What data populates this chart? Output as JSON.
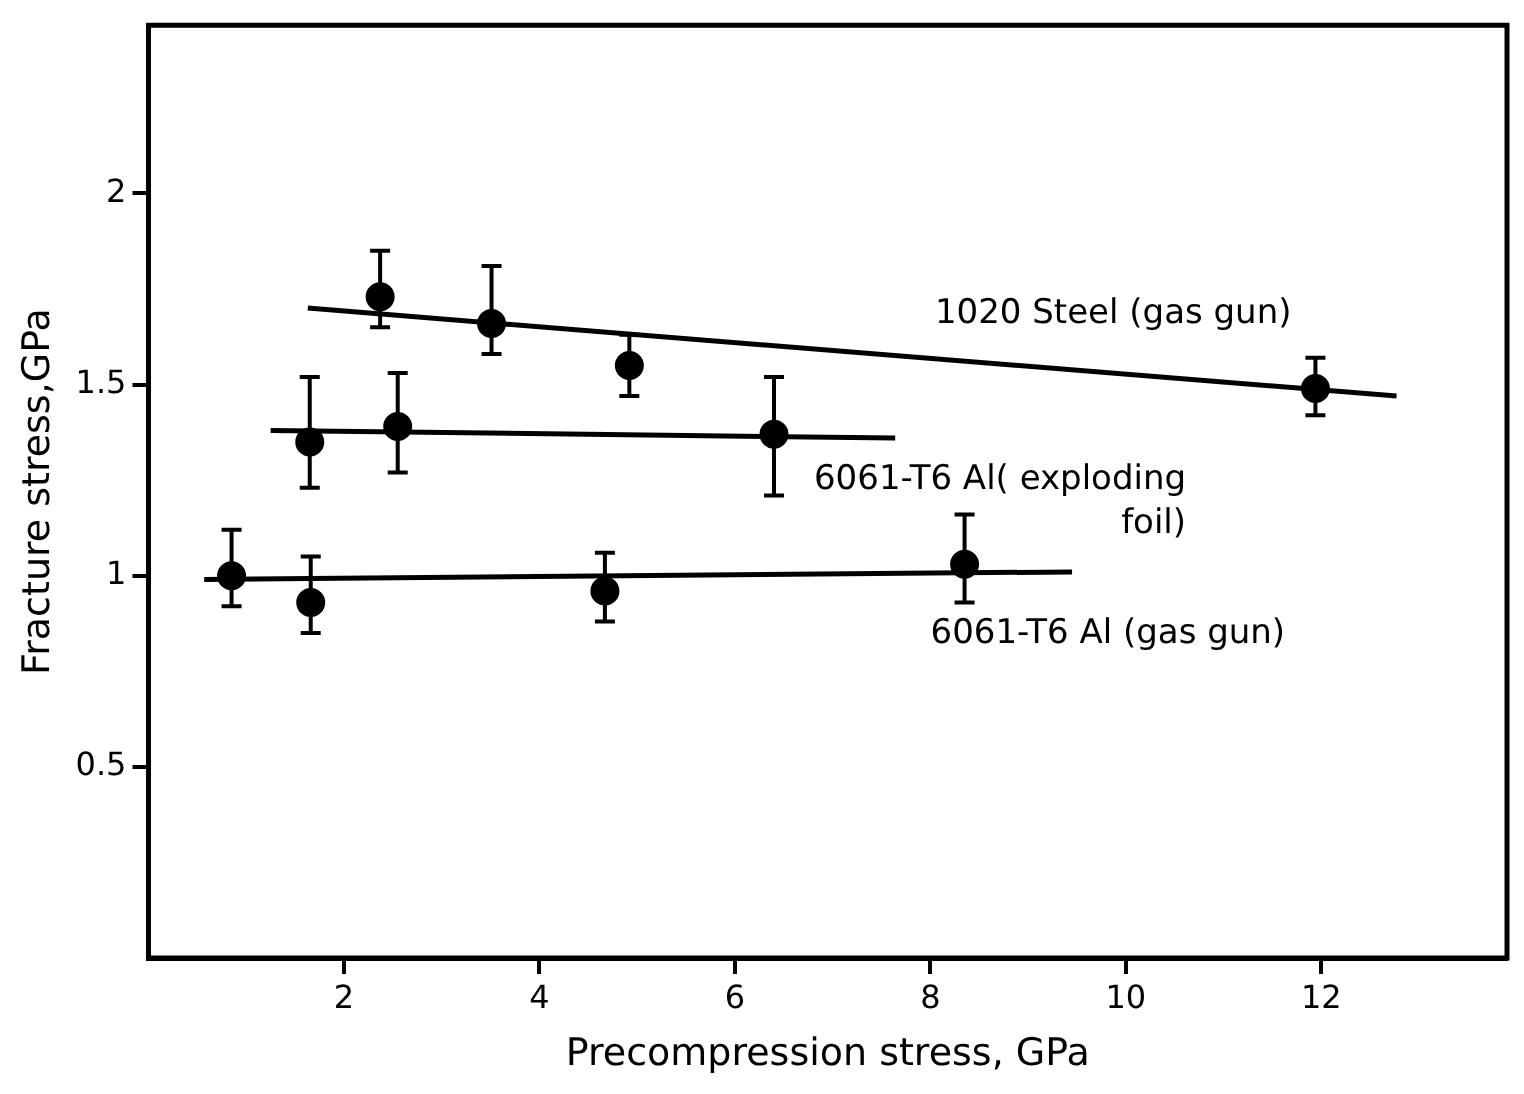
{
  "chart_data": {
    "type": "scatter",
    "xlabel": "Precompression stress, GPa",
    "ylabel": "Fracture stress,GPa",
    "xlim": [
      0,
      13.9
    ],
    "ylim": [
      0,
      2.44
    ],
    "xticks": [
      2,
      4,
      6,
      8,
      10,
      12
    ],
    "yticks": [
      0.5,
      1,
      1.5,
      2
    ],
    "grid": false,
    "legend": false,
    "marker": "circle",
    "series": [
      {
        "name": "1020 Steel (gas gun)",
        "color": "#000000",
        "x": [
          2.37,
          3.51,
          4.92,
          11.94
        ],
        "values": [
          1.73,
          1.66,
          1.55,
          1.49
        ],
        "errors": [
          [
            1.65,
            1.85
          ],
          [
            1.58,
            1.81
          ],
          [
            1.47,
            1.63
          ],
          [
            1.42,
            1.57
          ]
        ]
      },
      {
        "name": "6061-T6 Al( exploding\nfoil)",
        "color": "#000000",
        "x": [
          1.65,
          2.55,
          6.4
        ],
        "values": [
          1.35,
          1.39,
          1.37
        ],
        "errors": [
          [
            1.23,
            1.52
          ],
          [
            1.27,
            1.53
          ],
          [
            1.21,
            1.52
          ]
        ]
      },
      {
        "name": "6061-T6 Al (gas gun)",
        "color": "#000000",
        "x": [
          0.85,
          1.66,
          4.67,
          8.35
        ],
        "values": [
          1.0,
          0.93,
          0.96,
          1.03
        ],
        "errors": [
          [
            0.92,
            1.12
          ],
          [
            0.85,
            1.05
          ],
          [
            0.88,
            1.06
          ],
          [
            0.93,
            1.16
          ]
        ]
      },
      {
        "type": "line",
        "color": "#000000",
        "marker": "none",
        "line_style": "solid",
        "x": [
          1.63,
          12.77
        ],
        "values": [
          1.7,
          1.47
        ]
      },
      {
        "type": "line",
        "color": "#000000",
        "marker": "none",
        "line_style": "solid",
        "x": [
          1.25,
          7.64
        ],
        "values": [
          1.38,
          1.36
        ]
      },
      {
        "type": "line",
        "color": "#000000",
        "marker": "none",
        "line_style": "solid",
        "x": [
          0.57,
          9.45
        ],
        "values": [
          0.99,
          1.01
        ]
      }
    ]
  }
}
